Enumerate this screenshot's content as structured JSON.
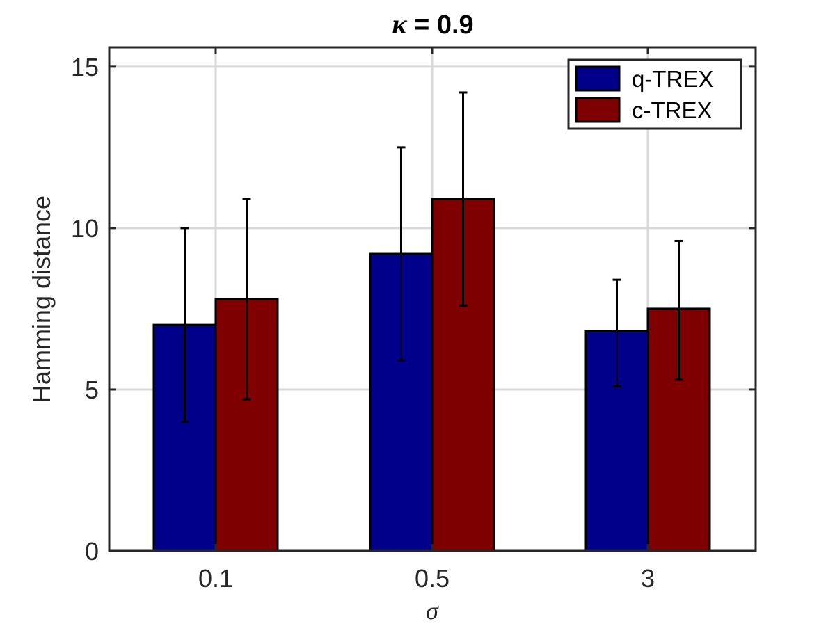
{
  "chart_data": {
    "type": "bar",
    "title_symbol": "κ",
    "title_rest": " = 0.9",
    "xlabel": "σ",
    "ylabel": "Hamming distance",
    "categories": [
      "0.1",
      "0.5",
      "3"
    ],
    "ylim": [
      0,
      15.6
    ],
    "yticks": [
      0,
      5,
      10,
      15
    ],
    "ytick_labels": [
      "0",
      "5",
      "10",
      "15"
    ],
    "grid": true,
    "legend_position": "top-right",
    "series": [
      {
        "name": "q-TREX",
        "color": "#00008B",
        "values": [
          7.0,
          9.2,
          6.8
        ],
        "err_low": [
          4.0,
          5.9,
          5.1
        ],
        "err_high": [
          10.0,
          12.5,
          8.4
        ]
      },
      {
        "name": "c-TREX",
        "color": "#7F0000",
        "values": [
          7.8,
          10.9,
          7.5
        ],
        "err_low": [
          4.7,
          7.6,
          5.3
        ],
        "err_high": [
          10.9,
          14.2,
          9.6
        ]
      }
    ]
  }
}
